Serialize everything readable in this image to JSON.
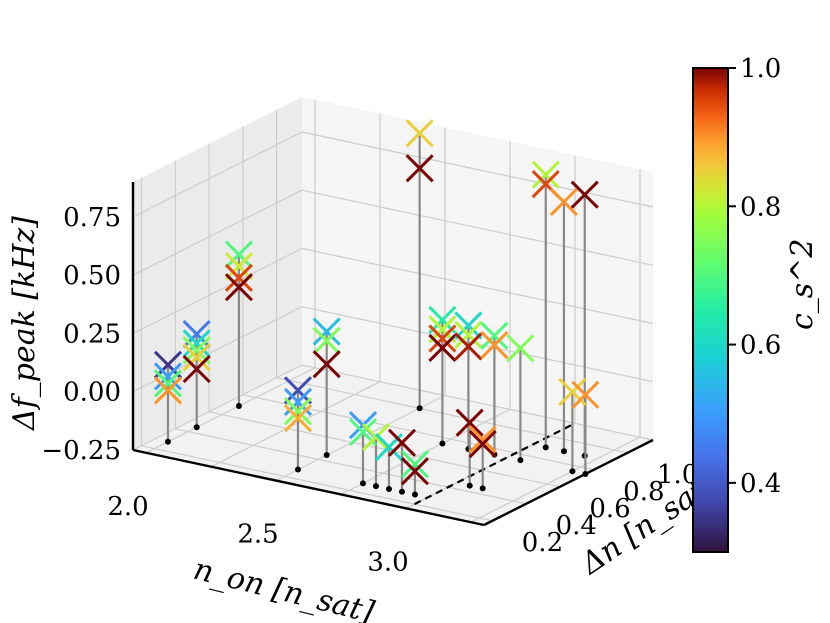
{
  "chart_data": {
    "type": "scatter",
    "projection": "3d",
    "title": "",
    "xlabel": "n_on [n_sat]",
    "ylabel": "Δn [n_sat]",
    "zlabel": "Δf_peak [kHz]",
    "xlim": [
      1.95,
      3.3
    ],
    "ylim": [
      0.15,
      1.15
    ],
    "zlim": [
      -0.25,
      0.9
    ],
    "x_ticks": [
      "2.0",
      "2.5",
      "3.0"
    ],
    "y_ticks": [
      "0.2",
      "0.4",
      "0.6",
      "0.8",
      "1.0"
    ],
    "z_ticks": [
      "−0.25",
      "0.00",
      "0.25",
      "0.50",
      "0.75"
    ],
    "grid": true,
    "marker": "x",
    "stems": true,
    "colorbar": {
      "label": "c_s^2",
      "range": [
        0.3,
        1.0
      ],
      "ticks": [
        "0.4",
        "0.6",
        "0.8",
        "1.0"
      ],
      "colormap": "turbo"
    },
    "dashed_line": {
      "from": [
        3.0,
        0.2
      ],
      "to": [
        3.0,
        1.15
      ]
    },
    "points": [
      {
        "x": 2.0,
        "y": 0.28,
        "z": 0.08,
        "c": 0.35
      },
      {
        "x": 2.0,
        "y": 0.28,
        "z": 0.03,
        "c": 0.5
      },
      {
        "x": 2.0,
        "y": 0.28,
        "z": 0.0,
        "c": 0.7
      },
      {
        "x": 2.0,
        "y": 0.28,
        "z": -0.03,
        "c": 0.9
      },
      {
        "x": 2.0,
        "y": 0.45,
        "z": 0.15,
        "c": 0.45
      },
      {
        "x": 2.0,
        "y": 0.45,
        "z": 0.11,
        "c": 0.6
      },
      {
        "x": 2.0,
        "y": 0.45,
        "z": 0.08,
        "c": 0.75
      },
      {
        "x": 2.0,
        "y": 0.45,
        "z": 0.05,
        "c": 0.85
      },
      {
        "x": 2.0,
        "y": 0.45,
        "z": 0.0,
        "c": 1.0
      },
      {
        "x": 2.0,
        "y": 0.7,
        "z": 0.4,
        "c": 0.7
      },
      {
        "x": 2.0,
        "y": 0.7,
        "z": 0.35,
        "c": 0.82
      },
      {
        "x": 2.0,
        "y": 0.7,
        "z": 0.3,
        "c": 0.95
      },
      {
        "x": 2.0,
        "y": 0.7,
        "z": 0.26,
        "c": 1.0
      },
      {
        "x": 2.5,
        "y": 0.28,
        "z": 0.09,
        "c": 0.38
      },
      {
        "x": 2.5,
        "y": 0.28,
        "z": 0.04,
        "c": 0.5
      },
      {
        "x": 2.5,
        "y": 0.28,
        "z": 0.0,
        "c": 0.75
      },
      {
        "x": 2.5,
        "y": 0.28,
        "z": -0.03,
        "c": 0.88
      },
      {
        "x": 2.5,
        "y": 0.45,
        "z": 0.28,
        "c": 0.55
      },
      {
        "x": 2.5,
        "y": 0.45,
        "z": 0.24,
        "c": 0.75
      },
      {
        "x": 2.5,
        "y": 0.45,
        "z": 0.14,
        "c": 1.0
      },
      {
        "x": 2.5,
        "y": 1.0,
        "z": 0.93,
        "c": 0.85
      },
      {
        "x": 2.5,
        "y": 1.0,
        "z": 0.78,
        "c": 1.0
      },
      {
        "x": 2.75,
        "y": 0.28,
        "z": 0.0,
        "c": 0.5
      },
      {
        "x": 2.75,
        "y": 0.28,
        "z": -0.03,
        "c": 0.7
      },
      {
        "x": 2.8,
        "y": 0.28,
        "z": -0.04,
        "c": 0.8
      },
      {
        "x": 2.85,
        "y": 0.28,
        "z": -0.07,
        "c": 0.6
      },
      {
        "x": 2.9,
        "y": 0.28,
        "z": -0.04,
        "c": 1.0
      },
      {
        "x": 2.95,
        "y": 0.28,
        "z": -0.12,
        "c": 0.7
      },
      {
        "x": 2.95,
        "y": 0.28,
        "z": -0.15,
        "c": 1.0
      },
      {
        "x": 2.75,
        "y": 0.75,
        "z": 0.28,
        "c": 0.65
      },
      {
        "x": 2.75,
        "y": 0.75,
        "z": 0.24,
        "c": 0.8
      },
      {
        "x": 2.75,
        "y": 0.75,
        "z": 0.2,
        "c": 0.95
      },
      {
        "x": 2.75,
        "y": 0.75,
        "z": 0.16,
        "c": 1.0
      },
      {
        "x": 2.85,
        "y": 0.75,
        "z": 0.28,
        "c": 0.6
      },
      {
        "x": 2.85,
        "y": 0.75,
        "z": 0.24,
        "c": 0.8
      },
      {
        "x": 2.85,
        "y": 0.75,
        "z": 0.19,
        "c": 0.98
      },
      {
        "x": 2.95,
        "y": 0.75,
        "z": 0.26,
        "c": 0.7
      },
      {
        "x": 2.95,
        "y": 0.75,
        "z": 0.22,
        "c": 0.9
      },
      {
        "x": 3.05,
        "y": 0.75,
        "z": 0.23,
        "c": 0.75
      },
      {
        "x": 3.05,
        "y": 0.9,
        "z": 0.92,
        "c": 0.8
      },
      {
        "x": 3.05,
        "y": 0.9,
        "z": 0.88,
        "c": 0.95
      },
      {
        "x": 3.12,
        "y": 0.9,
        "z": 0.82,
        "c": 0.9
      },
      {
        "x": 3.2,
        "y": 0.9,
        "z": 0.87,
        "c": 1.0
      },
      {
        "x": 3.05,
        "y": 0.45,
        "z": 0.02,
        "c": 1.0
      },
      {
        "x": 3.1,
        "y": 0.45,
        "z": -0.04,
        "c": 0.9
      },
      {
        "x": 3.1,
        "y": 0.45,
        "z": -0.06,
        "c": 1.0
      },
      {
        "x": 3.25,
        "y": 0.75,
        "z": 0.09,
        "c": 0.85
      },
      {
        "x": 3.3,
        "y": 0.75,
        "z": 0.09,
        "c": 0.9
      }
    ]
  }
}
